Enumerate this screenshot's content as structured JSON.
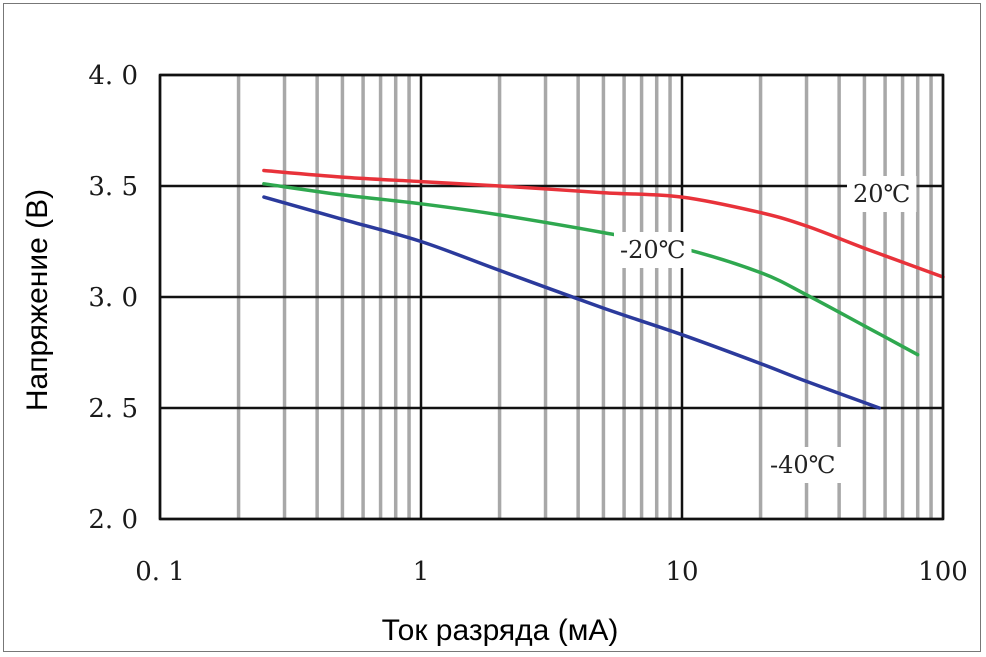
{
  "chart_data": {
    "type": "line",
    "title": "",
    "xlabel": "Ток разряда (мА)",
    "ylabel": "Напряжение (В)",
    "x_scale": "log",
    "xlim": [
      0.1,
      100
    ],
    "ylim": [
      2.0,
      4.0
    ],
    "x_ticks": [
      {
        "value": 0.1,
        "label": "0. 1"
      },
      {
        "value": 1,
        "label": "1"
      },
      {
        "value": 10,
        "label": "10"
      },
      {
        "value": 100,
        "label": "100"
      }
    ],
    "y_ticks": [
      {
        "value": 2.0,
        "label": "2. 0"
      },
      {
        "value": 2.5,
        "label": "2. 5"
      },
      {
        "value": 3.0,
        "label": "3. 0"
      },
      {
        "value": 3.5,
        "label": "3. 5"
      },
      {
        "value": 4.0,
        "label": "4. 0"
      }
    ],
    "grid": true,
    "series": [
      {
        "name": "20℃",
        "color": "#e8323a",
        "x": [
          0.25,
          0.5,
          1,
          2,
          5,
          10,
          20,
          30,
          50,
          100
        ],
        "y": [
          3.57,
          3.54,
          3.52,
          3.5,
          3.47,
          3.45,
          3.38,
          3.32,
          3.22,
          3.09
        ]
      },
      {
        "name": "-20℃",
        "color": "#2fa84f",
        "x": [
          0.25,
          0.5,
          1,
          2,
          5,
          10,
          20,
          30,
          50,
          80
        ],
        "y": [
          3.51,
          3.46,
          3.42,
          3.37,
          3.29,
          3.22,
          3.11,
          3.01,
          2.87,
          2.74
        ]
      },
      {
        "name": "-40℃",
        "color": "#2b3a9c",
        "x": [
          0.25,
          0.5,
          1,
          2,
          5,
          10,
          20,
          30,
          57
        ],
        "y": [
          3.45,
          3.35,
          3.25,
          3.12,
          2.95,
          2.83,
          2.7,
          2.62,
          2.5
        ]
      }
    ]
  },
  "labels": {
    "s20": "20℃",
    "sm20": "-20℃",
    "sm40": "-40℃"
  }
}
